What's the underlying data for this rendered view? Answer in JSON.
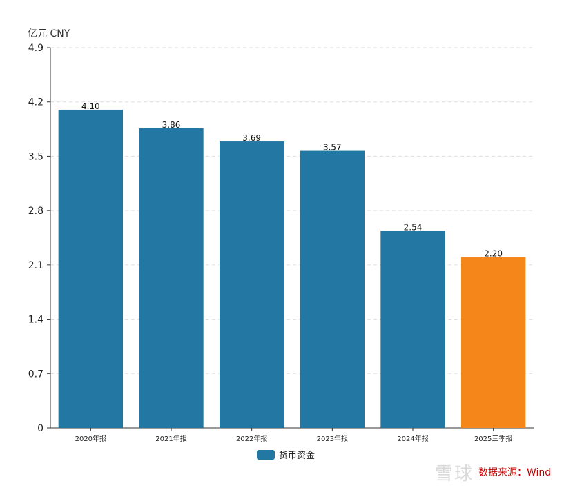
{
  "chart_data": {
    "type": "bar",
    "unit_label": "亿元  CNY",
    "categories": [
      "2020年报",
      "2021年报",
      "2022年报",
      "2023年报",
      "2024年报",
      "2025三季报"
    ],
    "series": [
      {
        "name": "货币资金",
        "values": [
          4.1,
          3.86,
          3.69,
          3.57,
          2.54,
          2.2
        ]
      }
    ],
    "value_labels": [
      "4.10",
      "3.86",
      "3.69",
      "3.57",
      "2.54",
      "2.20"
    ],
    "yticks": [
      "0",
      "0.7",
      "1.4",
      "2.1",
      "2.8",
      "3.5",
      "4.2",
      "4.9"
    ],
    "ylim": [
      0,
      4.9
    ],
    "grid": true,
    "legend_position": "bottom-center",
    "colors": {
      "bar": "#2277a3",
      "highlight": "#f5871a"
    },
    "highlight_index": 5
  },
  "source_note": "数据来源：Wind",
  "watermark_text": "雪球"
}
